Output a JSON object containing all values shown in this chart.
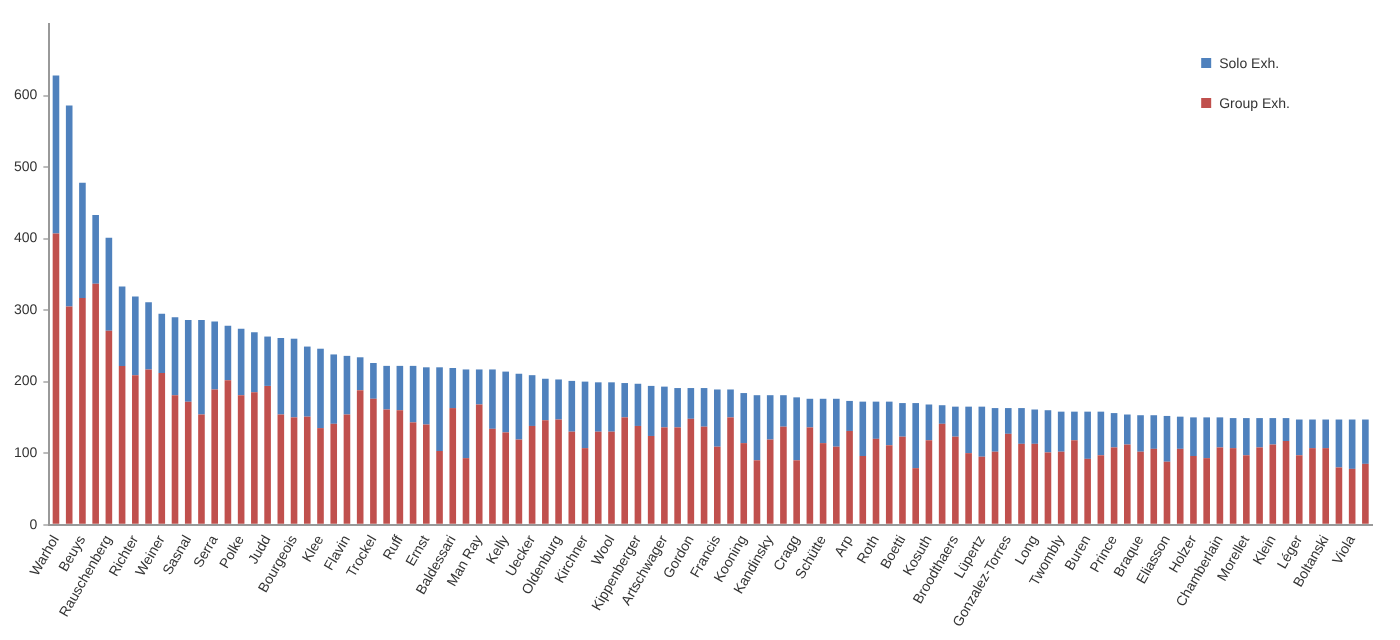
{
  "chart_data": {
    "type": "bar",
    "stacked": true,
    "categories": [
      "Warhol",
      null,
      "Beuys",
      null,
      "Rauschenberg",
      null,
      "Richter",
      null,
      "Weiner",
      null,
      "Sasnal",
      null,
      "Serra",
      null,
      "Polke",
      null,
      "Judd",
      null,
      "Bourgeois",
      null,
      "Klee",
      null,
      "Flavin",
      null,
      "Trockel",
      null,
      "Ruff",
      null,
      "Ernst",
      null,
      "Baldessari",
      null,
      "Man Ray",
      null,
      "Kelly",
      null,
      "Uecker",
      null,
      "Oldenburg",
      null,
      "Kirchner",
      null,
      "Wool",
      null,
      "Kippenberger",
      null,
      "Artschwager",
      null,
      "Gordon",
      null,
      "Francis",
      null,
      "Kooning",
      null,
      "Kandinsky",
      null,
      "Cragg",
      null,
      "Schütte",
      null,
      "Arp",
      null,
      "Roth",
      null,
      "Boetti",
      null,
      "Kosuth",
      null,
      "Broodthaers",
      null,
      "Lüpertz",
      null,
      "Gonzalez-Torres",
      null,
      "Long",
      null,
      "Twombly",
      null,
      "Buren",
      null,
      "Prince",
      null,
      "Braque",
      null,
      "Eliasson",
      null,
      "Holzer",
      null,
      "Chamberlain",
      null,
      "Morellet",
      null,
      "Klein",
      null,
      "Léger",
      null,
      "Boltanski",
      null,
      "Viola",
      null
    ],
    "series": [
      {
        "name": "Group Exh.",
        "color": "#c0504d",
        "values": [
          407,
          305,
          317,
          337,
          271,
          222,
          209,
          217,
          212,
          181,
          172,
          154,
          189,
          202,
          181,
          185,
          194,
          154,
          150,
          151,
          135,
          141,
          154,
          188,
          176,
          161,
          160,
          143,
          140,
          103,
          163,
          93,
          168,
          134,
          129,
          119,
          138,
          146,
          147,
          130,
          107,
          130,
          130,
          150,
          138,
          124,
          136,
          136,
          148,
          137,
          109,
          150,
          114,
          90,
          119,
          137,
          90,
          136,
          114,
          109,
          131,
          96,
          120,
          111,
          123,
          79,
          118,
          141,
          123,
          100,
          95,
          102,
          127,
          113,
          113,
          101,
          102,
          118,
          92,
          97,
          108,
          112,
          102,
          106,
          88,
          106,
          96,
          93,
          108,
          107,
          97,
          108,
          112,
          117,
          97,
          107,
          107,
          80,
          78,
          85
        ]
      },
      {
        "name": "Solo Exh.",
        "color": "#4f81bd",
        "values": [
          221,
          281,
          161,
          96,
          130,
          111,
          110,
          94,
          83,
          109,
          114,
          132,
          95,
          76,
          93,
          84,
          69,
          107,
          110,
          98,
          111,
          97,
          82,
          46,
          50,
          61,
          62,
          79,
          80,
          117,
          56,
          124,
          49,
          83,
          85,
          92,
          71,
          58,
          56,
          71,
          93,
          69,
          69,
          48,
          59,
          70,
          57,
          55,
          43,
          54,
          80,
          39,
          70,
          91,
          62,
          44,
          88,
          40,
          62,
          67,
          42,
          76,
          52,
          61,
          47,
          91,
          50,
          26,
          42,
          65,
          70,
          61,
          36,
          50,
          48,
          59,
          56,
          40,
          66,
          61,
          48,
          42,
          51,
          47,
          64,
          45,
          54,
          57,
          42,
          42,
          52,
          41,
          37,
          32,
          50,
          40,
          40,
          67,
          69,
          62
        ]
      }
    ],
    "ylim": [
      0,
      700
    ],
    "yticks": [
      0,
      100,
      200,
      300,
      400,
      500,
      600
    ],
    "grid": false,
    "legend": "top right"
  }
}
